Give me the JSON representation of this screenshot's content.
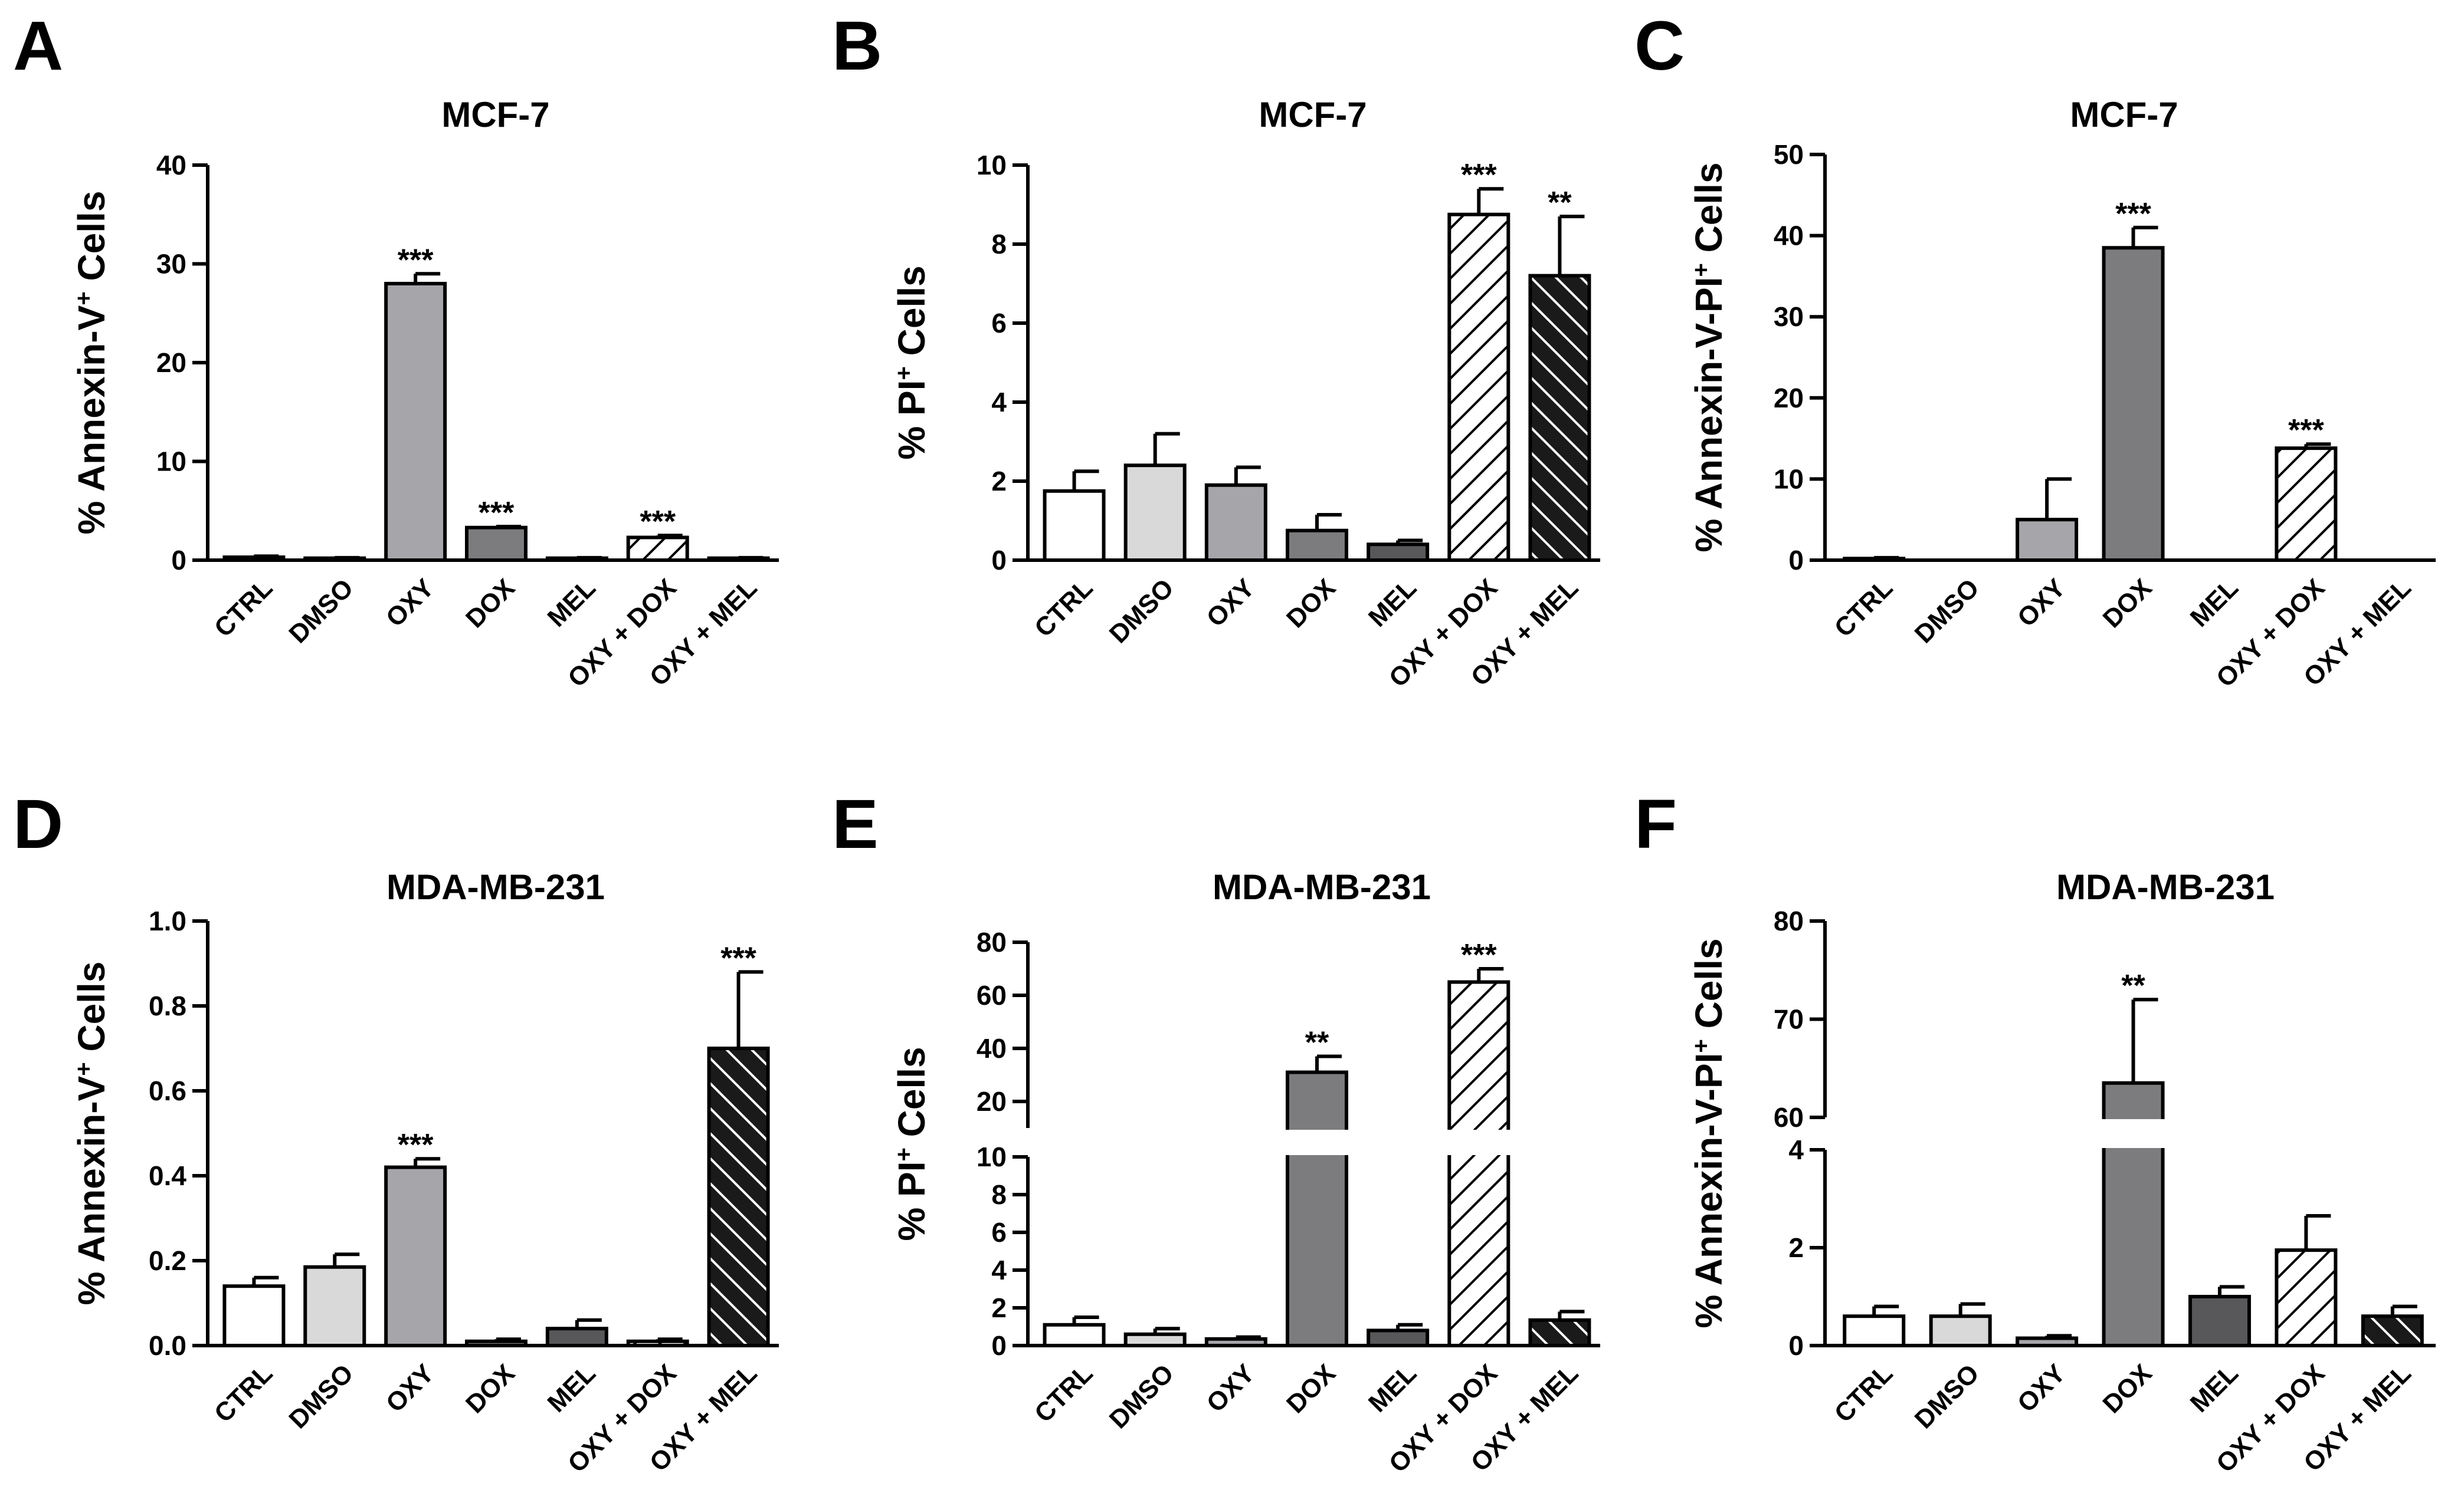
{
  "chart_data": [
    {
      "panel": "A",
      "type": "bar",
      "title": "MCF-7",
      "ylabel": "% Annexin-V",
      "ylabel_sup": "+",
      "ylabel_suffix": " Cells",
      "categories": [
        "CTRL",
        "DMSO",
        "OXY",
        "DOX",
        "MEL",
        "OXY + DOX",
        "OXY + MEL"
      ],
      "values": [
        0.3,
        0.2,
        28.0,
        3.3,
        0.2,
        2.3,
        0.2
      ],
      "errors": [
        0.1,
        0.05,
        1.0,
        0.1,
        0.05,
        0.2,
        0.05
      ],
      "significance": [
        "",
        "",
        "***",
        "***",
        "",
        "***",
        ""
      ],
      "ylim": [
        0,
        40
      ],
      "yticks": [
        0,
        10,
        20,
        30,
        40
      ],
      "ytick_labels": [
        "0",
        "10",
        "20",
        "30",
        "40"
      ]
    },
    {
      "panel": "B",
      "type": "bar",
      "title": "MCF-7",
      "ylabel": "% PI",
      "ylabel_sup": "+",
      "ylabel_suffix": " Cells",
      "categories": [
        "CTRL",
        "DMSO",
        "OXY",
        "DOX",
        "MEL",
        "OXY + DOX",
        "OXY + MEL"
      ],
      "values": [
        1.75,
        2.4,
        1.9,
        0.75,
        0.4,
        8.75,
        7.2
      ],
      "errors": [
        0.5,
        0.8,
        0.45,
        0.4,
        0.1,
        0.65,
        1.5
      ],
      "significance": [
        "",
        "",
        "",
        "",
        "",
        "***",
        "**"
      ],
      "ylim": [
        0,
        10
      ],
      "yticks": [
        0,
        2,
        4,
        6,
        8,
        10
      ],
      "ytick_labels": [
        "0",
        "2",
        "4",
        "6",
        "8",
        "10"
      ]
    },
    {
      "panel": "C",
      "type": "bar",
      "title": "MCF-7",
      "ylabel": "% Annexin-V-PI",
      "ylabel_sup": "+",
      "ylabel_suffix": " Cells",
      "categories": [
        "CTRL",
        "DMSO",
        "OXY",
        "DOX",
        "MEL",
        "OXY + DOX",
        "OXY + MEL"
      ],
      "values": [
        0.2,
        0.0,
        5.0,
        38.5,
        0.0,
        13.8,
        0.0
      ],
      "errors": [
        0.1,
        0.0,
        5.0,
        2.5,
        0.0,
        0.5,
        0.0
      ],
      "significance": [
        "",
        "",
        "",
        "***",
        "",
        "***",
        ""
      ],
      "ylim": [
        0,
        50
      ],
      "yticks": [
        0,
        10,
        20,
        30,
        40,
        50
      ],
      "ytick_labels": [
        "0",
        "10",
        "20",
        "30",
        "40",
        "50"
      ]
    },
    {
      "panel": "D",
      "type": "bar",
      "title": "MDA-MB-231",
      "ylabel": "% Annexin-V",
      "ylabel_sup": "+",
      "ylabel_suffix": " Cells",
      "categories": [
        "CTRL",
        "DMSO",
        "OXY",
        "DOX",
        "MEL",
        "OXY + DOX",
        "OXY + MEL"
      ],
      "values": [
        0.14,
        0.185,
        0.42,
        0.01,
        0.04,
        0.01,
        0.7
      ],
      "errors": [
        0.02,
        0.03,
        0.02,
        0.005,
        0.02,
        0.005,
        0.18
      ],
      "significance": [
        "",
        "",
        "***",
        "",
        "",
        "",
        "***"
      ],
      "ylim": [
        0,
        1.0
      ],
      "yticks": [
        0,
        0.2,
        0.4,
        0.6,
        0.8,
        1.0
      ],
      "ytick_labels": [
        "0.0",
        "0.2",
        "0.4",
        "0.6",
        "0.8",
        "1.0"
      ]
    },
    {
      "panel": "E",
      "type": "bar",
      "title": "MDA-MB-231",
      "ylabel": "% PI",
      "ylabel_sup": "+",
      "ylabel_suffix": " Cells",
      "categories": [
        "CTRL",
        "DMSO",
        "OXY",
        "DOX",
        "MEL",
        "OXY + DOX",
        "OXY + MEL"
      ],
      "values": [
        1.1,
        0.6,
        0.35,
        31.0,
        0.8,
        65.0,
        1.35
      ],
      "errors": [
        0.4,
        0.3,
        0.1,
        6.0,
        0.3,
        5.0,
        0.45
      ],
      "significance": [
        "",
        "",
        "",
        "**",
        "",
        "***",
        ""
      ],
      "broken_axis": {
        "lower": [
          0,
          10
        ],
        "upper": [
          10,
          80
        ]
      },
      "yticks_lower": [
        0,
        2,
        4,
        6,
        8,
        10
      ],
      "ytick_labels_lower": [
        "0",
        "2",
        "4",
        "6",
        "8",
        "10"
      ],
      "yticks_upper": [
        20,
        40,
        60,
        80
      ],
      "ytick_labels_upper": [
        "20",
        "40",
        "60",
        "80"
      ]
    },
    {
      "panel": "F",
      "type": "bar",
      "title": "MDA-MB-231",
      "ylabel": "% Annexin-V-PI",
      "ylabel_sup": "+",
      "ylabel_suffix": " Cells",
      "categories": [
        "CTRL",
        "DMSO",
        "OXY",
        "DOX",
        "MEL",
        "OXY + DOX",
        "OXY + MEL"
      ],
      "values": [
        0.6,
        0.6,
        0.15,
        63.5,
        1.0,
        1.95,
        0.6
      ],
      "errors": [
        0.2,
        0.25,
        0.05,
        8.5,
        0.2,
        0.7,
        0.2
      ],
      "significance": [
        "",
        "",
        "",
        "**",
        "",
        "",
        ""
      ],
      "broken_axis": {
        "lower": [
          0,
          4
        ],
        "upper": [
          60,
          80
        ]
      },
      "yticks_lower": [
        0,
        2,
        4
      ],
      "ytick_labels_lower": [
        "0",
        "2",
        "4"
      ],
      "yticks_upper": [
        60,
        70,
        80
      ],
      "ytick_labels_upper": [
        "60",
        "70",
        "80"
      ]
    }
  ],
  "panel_letters": [
    "A",
    "B",
    "C",
    "D",
    "E",
    "F"
  ],
  "styles": {
    "CTRL": {
      "fill": "#ffffff",
      "hatch": "none"
    },
    "DMSO": {
      "fill": "#d9d9d9",
      "hatch": "none"
    },
    "OXY": {
      "fill": "#a6a6aa",
      "hatch": "none"
    },
    "DOX": {
      "fill": "#7c7c7e",
      "hatch": "none"
    },
    "MEL": {
      "fill": "#58585a",
      "hatch": "none"
    },
    "OXY + DOX": {
      "fill": "#ffffff",
      "hatch": "light"
    },
    "OXY + MEL": {
      "fill": "#1a1a1a",
      "hatch": "dark"
    }
  }
}
